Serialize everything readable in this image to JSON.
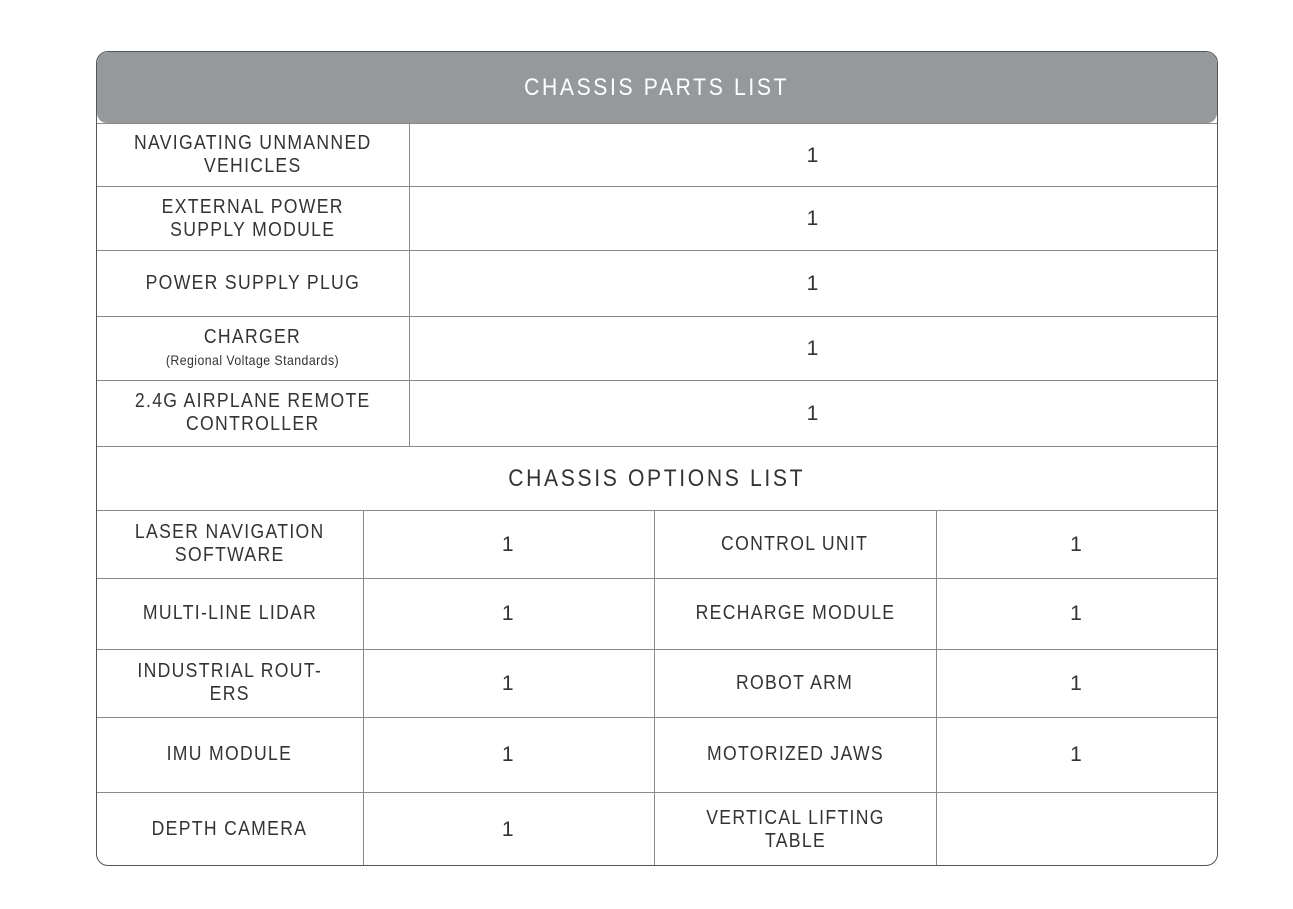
{
  "title": "CHASSIS PARTS LIST",
  "parts": [
    {
      "name": "NAVIGATING UNMANNED VEHICLES",
      "note": "",
      "qty": "1"
    },
    {
      "name": "EXTERNAL POWER SUPPLY MODULE",
      "note": "",
      "qty": "1"
    },
    {
      "name": "POWER SUPPLY PLUG",
      "note": "",
      "qty": "1"
    },
    {
      "name": "CHARGER",
      "note": "(Regional Voltage Standards)",
      "qty": "1"
    },
    {
      "name": "2.4G AIRPLANE REMOTE CONTROLLER",
      "note": "",
      "qty": "1"
    }
  ],
  "options_title": "CHASSIS OPTIONS LIST",
  "options": [
    {
      "left_name": "LASER NAVIGATION SOFTWARE",
      "left_qty": "1",
      "right_name": "CONTROL UNIT",
      "right_qty": "1"
    },
    {
      "left_name": "MULTI-LINE LIDAR",
      "left_qty": "1",
      "right_name": "RECHARGE MODULE",
      "right_qty": "1"
    },
    {
      "left_name": "INDUSTRIAL ROUT-ERS",
      "left_qty": "1",
      "right_name": "ROBOT ARM",
      "right_qty": "1"
    },
    {
      "left_name": "IMU MODULE",
      "left_qty": "1",
      "right_name": "MOTORIZED JAWS",
      "right_qty": "1"
    },
    {
      "left_name": "DEPTH CAMERA",
      "left_qty": "1",
      "right_name": "VERTICAL LIFTING TABLE",
      "right_qty": ""
    }
  ],
  "colors": {
    "header_bg": "#95999c",
    "border": "#8a8a8a"
  }
}
